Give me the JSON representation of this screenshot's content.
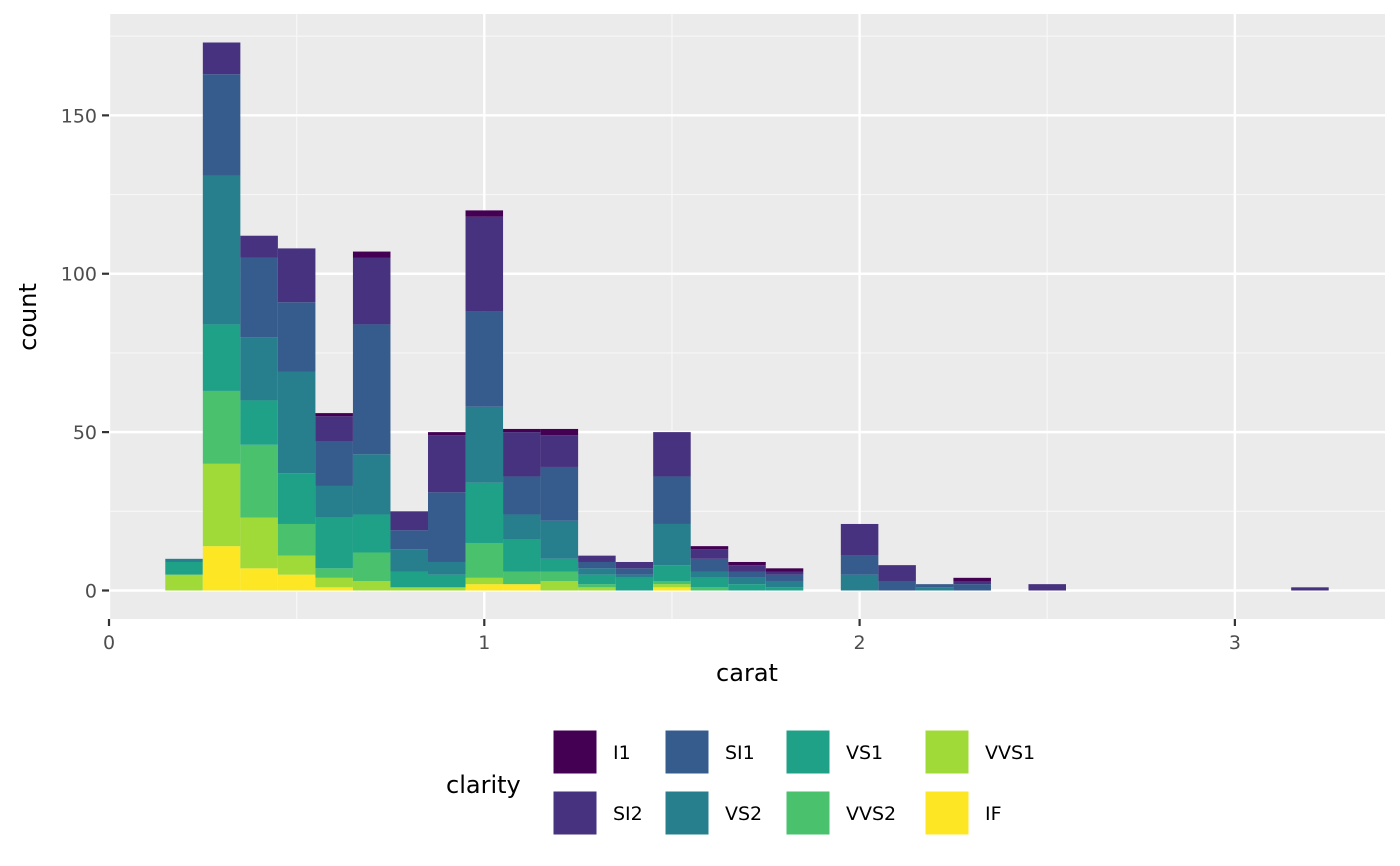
{
  "chart_data": {
    "type": "bar",
    "stacked": true,
    "binwidth": 0.1,
    "xlabel": "carat",
    "ylabel": "count",
    "xlim": [
      0,
      3.4
    ],
    "ylim": [
      -9,
      182
    ],
    "x_ticks": [
      0,
      1,
      2,
      3
    ],
    "y_ticks": [
      0,
      50,
      100,
      150
    ],
    "grid": true,
    "legend": {
      "title": "clarity",
      "position": "bottom"
    },
    "bins": [
      0.2,
      0.3,
      0.4,
      0.5,
      0.6,
      0.7,
      0.8,
      0.9,
      1.0,
      1.1,
      1.2,
      1.3,
      1.4,
      1.5,
      1.6,
      1.7,
      1.8,
      1.9,
      2.0,
      2.1,
      2.2,
      2.3,
      2.4,
      2.5,
      2.6,
      2.7,
      2.8,
      2.9,
      3.0,
      3.1,
      3.2
    ],
    "series": [
      {
        "name": "IF",
        "color": "#FDE725",
        "values": [
          0,
          14,
          7,
          5,
          1,
          0,
          0,
          0,
          2,
          2,
          0,
          0,
          0,
          1,
          0,
          0,
          0,
          0,
          0,
          0,
          0,
          0,
          0,
          0,
          0,
          0,
          0,
          0,
          0,
          0,
          0
        ]
      },
      {
        "name": "VVS1",
        "color": "#A0DA39",
        "values": [
          5,
          26,
          16,
          6,
          3,
          3,
          1,
          1,
          2,
          0,
          3,
          1,
          0,
          1,
          0,
          0,
          0,
          0,
          0,
          0,
          0,
          0,
          0,
          0,
          0,
          0,
          0,
          0,
          0,
          0,
          0
        ]
      },
      {
        "name": "VVS2",
        "color": "#4AC16D",
        "values": [
          0,
          23,
          23,
          10,
          3,
          9,
          0,
          0,
          11,
          4,
          3,
          1,
          0,
          1,
          1,
          0,
          0,
          0,
          0,
          0,
          0,
          0,
          0,
          0,
          0,
          0,
          0,
          0,
          0,
          0,
          0
        ]
      },
      {
        "name": "VS1",
        "color": "#1FA187",
        "values": [
          4,
          21,
          14,
          16,
          16,
          12,
          5,
          4,
          19,
          10,
          4,
          3,
          4,
          5,
          3,
          2,
          1,
          0,
          0,
          0,
          0,
          0,
          0,
          0,
          0,
          0,
          0,
          0,
          0,
          0,
          0
        ]
      },
      {
        "name": "VS2",
        "color": "#277F8E",
        "values": [
          1,
          47,
          20,
          32,
          10,
          19,
          7,
          4,
          24,
          8,
          12,
          2,
          1,
          13,
          2,
          2,
          2,
          0,
          5,
          0,
          1,
          0,
          0,
          0,
          0,
          0,
          0,
          0,
          0,
          0,
          0
        ]
      },
      {
        "name": "SI1",
        "color": "#365C8D",
        "values": [
          0,
          32,
          25,
          22,
          14,
          41,
          6,
          22,
          30,
          12,
          17,
          2,
          2,
          15,
          4,
          2,
          2,
          0,
          6,
          3,
          1,
          2,
          0,
          0,
          0,
          0,
          0,
          0,
          0,
          0,
          0
        ]
      },
      {
        "name": "SI2",
        "color": "#46327E",
        "values": [
          0,
          10,
          7,
          17,
          8,
          21,
          6,
          18,
          30,
          14,
          10,
          2,
          2,
          14,
          3,
          2,
          1,
          0,
          10,
          5,
          0,
          1,
          0,
          2,
          0,
          0,
          0,
          0,
          0,
          0,
          1
        ]
      },
      {
        "name": "I1",
        "color": "#440154",
        "values": [
          0,
          0,
          0,
          0,
          1,
          2,
          0,
          1,
          2,
          1,
          2,
          0,
          0,
          0,
          1,
          1,
          1,
          0,
          0,
          0,
          0,
          1,
          0,
          0,
          0,
          0,
          0,
          0,
          0,
          0,
          0
        ]
      }
    ],
    "legend_order": [
      "I1",
      "SI2",
      "SI1",
      "VS2",
      "VS1",
      "VVS2",
      "VVS1",
      "IF"
    ]
  }
}
